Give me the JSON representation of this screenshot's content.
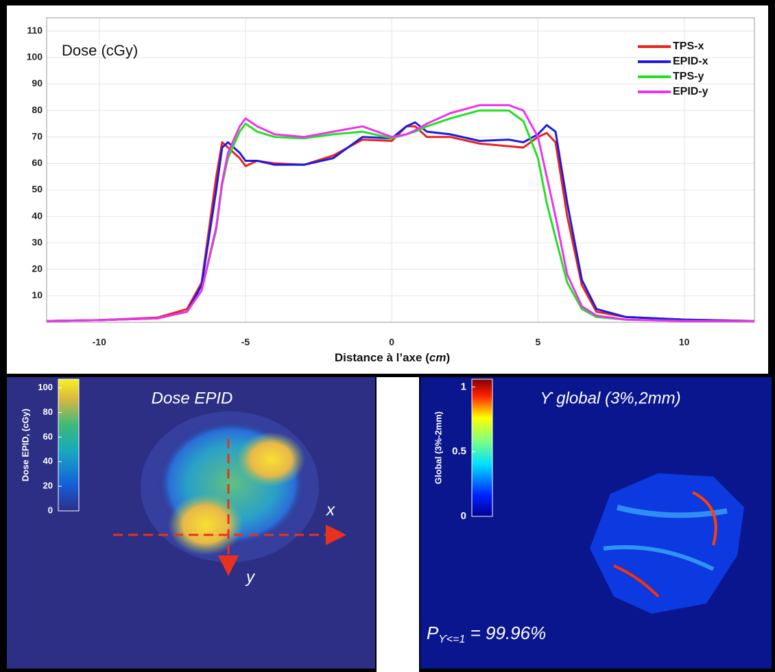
{
  "chart_data": [
    {
      "type": "line",
      "ylabel": "Dose (cGy)",
      "xlabel_parts": [
        "Distance à l’axe (",
        "cm",
        ")"
      ],
      "xlim": [
        -11.8,
        12.4
      ],
      "xticks": [
        -10,
        -5,
        0,
        5,
        10
      ],
      "ylim": [
        0,
        115
      ],
      "yticks": [
        10,
        20,
        30,
        40,
        50,
        60,
        70,
        80,
        90,
        100,
        110
      ],
      "grid": true,
      "legend": "upper right",
      "x": [
        -11.8,
        -10,
        -8,
        -7,
        -6.5,
        -6,
        -5.8,
        -5.6,
        -5.2,
        -5,
        -4.6,
        -4,
        -3,
        -2,
        -1,
        0,
        0.5,
        0.8,
        1.2,
        2,
        3,
        4,
        4.5,
        5,
        5.3,
        5.6,
        6,
        6.5,
        7,
        8,
        10,
        12.4
      ],
      "series": [
        {
          "name": "TPS-x",
          "color": "#e8231e",
          "values": [
            0.5,
            0.8,
            1.8,
            5,
            15,
            55,
            68,
            66,
            62,
            59,
            61,
            60,
            59.5,
            63,
            69,
            68.5,
            74,
            74,
            70,
            70,
            67.5,
            66.5,
            66,
            70,
            71.5,
            68,
            40,
            14,
            4,
            2,
            1,
            0.5
          ]
        },
        {
          "name": "EPID-x",
          "color": "#1c1ce0",
          "values": [
            0.5,
            0.8,
            1.5,
            4,
            14,
            50,
            66,
            68,
            64,
            61,
            61,
            59.5,
            59.5,
            62,
            70,
            69.5,
            74,
            75.5,
            72,
            71,
            68.5,
            69,
            68,
            71,
            74.5,
            72,
            45,
            16,
            5,
            2,
            1,
            0.5
          ]
        },
        {
          "name": "TPS-y",
          "color": "#22e022",
          "values": [
            0.5,
            0.8,
            1.5,
            4,
            12,
            35,
            52,
            62,
            72,
            75,
            72,
            70,
            69.5,
            71,
            72,
            69.5,
            71,
            72,
            74,
            77,
            80,
            80,
            76,
            62,
            45,
            32,
            15,
            5,
            2,
            1,
            0.5,
            0.5
          ]
        },
        {
          "name": "EPID-y",
          "color": "#f030f0",
          "values": [
            0.5,
            0.8,
            1.5,
            4,
            12,
            36,
            53,
            64,
            74,
            77,
            74,
            71,
            70,
            72,
            74,
            70,
            71,
            72.5,
            75,
            79,
            82,
            82,
            80,
            70,
            55,
            40,
            18,
            6,
            2.5,
            1,
            0.5,
            0.5
          ]
        }
      ]
    },
    {
      "type": "image",
      "title": "Dose EPID",
      "axis_x": "x",
      "axis_y": "y",
      "colorbar": {
        "label": "Dose EPID, (cGy)",
        "lim": [
          0,
          107
        ],
        "ticks": [
          0,
          20,
          40,
          60,
          80,
          100
        ]
      }
    },
    {
      "type": "image",
      "title": "ϒ global (3%,2mm)",
      "annotation_parts": [
        "P",
        "ϒ<=1",
        " = 99.96%"
      ],
      "colorbar": {
        "label": "Global (3%-2mm)",
        "lim": [
          0,
          1.06
        ],
        "ticks": [
          0,
          0.5,
          1
        ]
      }
    }
  ]
}
